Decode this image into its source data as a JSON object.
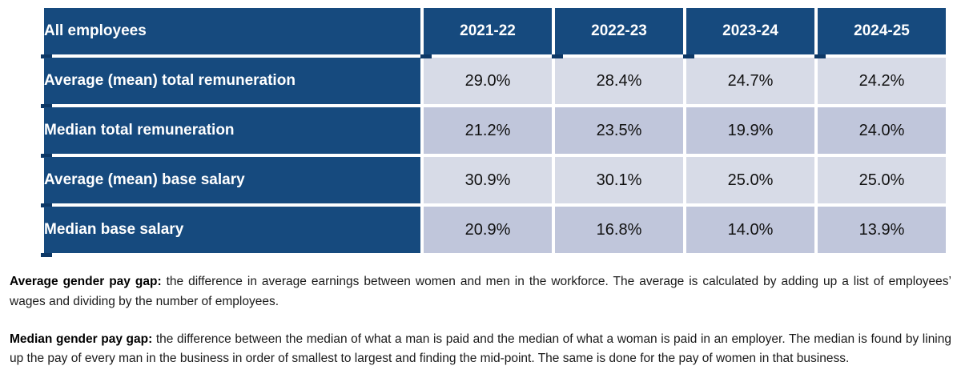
{
  "colors": {
    "header_navy": "#164A7E",
    "shadow_navy": "#0D3866",
    "row_light": "#D7DBE7",
    "row_dark": "#C0C6DB",
    "text_dark": "#1A1A1A",
    "background": "#FFFFFF"
  },
  "table": {
    "corner_label": "All employees",
    "year_headers": [
      "2021-22",
      "2022-23",
      "2023-24",
      "2024-25"
    ],
    "rows": [
      {
        "label": "Average (mean) total remuneration",
        "values": [
          "29.0%",
          "28.4%",
          "24.7%",
          "24.2%"
        ]
      },
      {
        "label": "Median total remuneration",
        "values": [
          "21.2%",
          "23.5%",
          "19.9%",
          "24.0%"
        ]
      },
      {
        "label": "Average (mean) base salary",
        "values": [
          "30.9%",
          "30.1%",
          "25.0%",
          "25.0%"
        ]
      },
      {
        "label": "Median base salary",
        "values": [
          "20.9%",
          "16.8%",
          "14.0%",
          "13.9%"
        ]
      }
    ]
  },
  "chart_data": {
    "type": "table",
    "title": "All employees",
    "categories": [
      "2021-22",
      "2022-23",
      "2023-24",
      "2024-25"
    ],
    "series": [
      {
        "name": "Average (mean) total remuneration",
        "values": [
          29.0,
          28.4,
          24.7,
          24.2
        ]
      },
      {
        "name": "Median total remuneration",
        "values": [
          21.2,
          23.5,
          19.9,
          24.0
        ]
      },
      {
        "name": "Average (mean) base salary",
        "values": [
          30.9,
          30.1,
          25.0,
          25.0
        ]
      },
      {
        "name": "Median base salary",
        "values": [
          20.9,
          16.8,
          14.0,
          13.9
        ]
      }
    ],
    "unit": "%"
  },
  "notes": [
    {
      "lead": "Average gender pay gap:",
      "text": " the difference in average earnings between women and men in the workforce. The average is calculated by adding up a list of employees’ wages and dividing by the number of employees."
    },
    {
      "lead": "Median gender pay gap:",
      "text": " the difference between the median of what a man is paid and the median of what a woman is paid in an employer. The median is found by lining up the pay of every man in the business in order of smallest to largest and finding the mid-point. The same is done for the pay of women in that business."
    }
  ]
}
